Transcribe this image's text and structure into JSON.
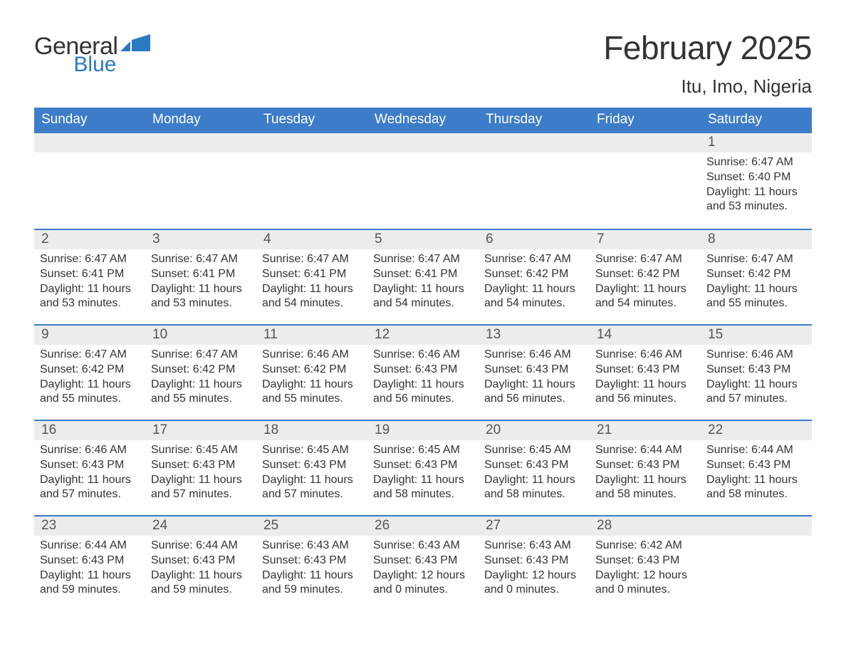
{
  "brand": {
    "general": "General",
    "blue": "Blue"
  },
  "colors": {
    "accent": "#3d7cc9",
    "header_bg": "#3d7cc9",
    "header_text": "#ffffff",
    "daynum_bg": "#ececec",
    "body_text": "#333333",
    "logo_blue": "#2b79c2"
  },
  "title": "February 2025",
  "location": "Itu, Imo, Nigeria",
  "weekdays": [
    "Sunday",
    "Monday",
    "Tuesday",
    "Wednesday",
    "Thursday",
    "Friday",
    "Saturday"
  ],
  "labels": {
    "sunrise": "Sunrise",
    "sunset": "Sunset",
    "daylight": "Daylight"
  },
  "calendar": {
    "type": "table",
    "columns": 7,
    "rows": 5,
    "start_weekday_index": 6,
    "days": [
      {
        "n": 1,
        "sunrise": "6:47 AM",
        "sunset": "6:40 PM",
        "daylight": "11 hours and 53 minutes."
      },
      {
        "n": 2,
        "sunrise": "6:47 AM",
        "sunset": "6:41 PM",
        "daylight": "11 hours and 53 minutes."
      },
      {
        "n": 3,
        "sunrise": "6:47 AM",
        "sunset": "6:41 PM",
        "daylight": "11 hours and 53 minutes."
      },
      {
        "n": 4,
        "sunrise": "6:47 AM",
        "sunset": "6:41 PM",
        "daylight": "11 hours and 54 minutes."
      },
      {
        "n": 5,
        "sunrise": "6:47 AM",
        "sunset": "6:41 PM",
        "daylight": "11 hours and 54 minutes."
      },
      {
        "n": 6,
        "sunrise": "6:47 AM",
        "sunset": "6:42 PM",
        "daylight": "11 hours and 54 minutes."
      },
      {
        "n": 7,
        "sunrise": "6:47 AM",
        "sunset": "6:42 PM",
        "daylight": "11 hours and 54 minutes."
      },
      {
        "n": 8,
        "sunrise": "6:47 AM",
        "sunset": "6:42 PM",
        "daylight": "11 hours and 55 minutes."
      },
      {
        "n": 9,
        "sunrise": "6:47 AM",
        "sunset": "6:42 PM",
        "daylight": "11 hours and 55 minutes."
      },
      {
        "n": 10,
        "sunrise": "6:47 AM",
        "sunset": "6:42 PM",
        "daylight": "11 hours and 55 minutes."
      },
      {
        "n": 11,
        "sunrise": "6:46 AM",
        "sunset": "6:42 PM",
        "daylight": "11 hours and 55 minutes."
      },
      {
        "n": 12,
        "sunrise": "6:46 AM",
        "sunset": "6:43 PM",
        "daylight": "11 hours and 56 minutes."
      },
      {
        "n": 13,
        "sunrise": "6:46 AM",
        "sunset": "6:43 PM",
        "daylight": "11 hours and 56 minutes."
      },
      {
        "n": 14,
        "sunrise": "6:46 AM",
        "sunset": "6:43 PM",
        "daylight": "11 hours and 56 minutes."
      },
      {
        "n": 15,
        "sunrise": "6:46 AM",
        "sunset": "6:43 PM",
        "daylight": "11 hours and 57 minutes."
      },
      {
        "n": 16,
        "sunrise": "6:46 AM",
        "sunset": "6:43 PM",
        "daylight": "11 hours and 57 minutes."
      },
      {
        "n": 17,
        "sunrise": "6:45 AM",
        "sunset": "6:43 PM",
        "daylight": "11 hours and 57 minutes."
      },
      {
        "n": 18,
        "sunrise": "6:45 AM",
        "sunset": "6:43 PM",
        "daylight": "11 hours and 57 minutes."
      },
      {
        "n": 19,
        "sunrise": "6:45 AM",
        "sunset": "6:43 PM",
        "daylight": "11 hours and 58 minutes."
      },
      {
        "n": 20,
        "sunrise": "6:45 AM",
        "sunset": "6:43 PM",
        "daylight": "11 hours and 58 minutes."
      },
      {
        "n": 21,
        "sunrise": "6:44 AM",
        "sunset": "6:43 PM",
        "daylight": "11 hours and 58 minutes."
      },
      {
        "n": 22,
        "sunrise": "6:44 AM",
        "sunset": "6:43 PM",
        "daylight": "11 hours and 58 minutes."
      },
      {
        "n": 23,
        "sunrise": "6:44 AM",
        "sunset": "6:43 PM",
        "daylight": "11 hours and 59 minutes."
      },
      {
        "n": 24,
        "sunrise": "6:44 AM",
        "sunset": "6:43 PM",
        "daylight": "11 hours and 59 minutes."
      },
      {
        "n": 25,
        "sunrise": "6:43 AM",
        "sunset": "6:43 PM",
        "daylight": "11 hours and 59 minutes."
      },
      {
        "n": 26,
        "sunrise": "6:43 AM",
        "sunset": "6:43 PM",
        "daylight": "12 hours and 0 minutes."
      },
      {
        "n": 27,
        "sunrise": "6:43 AM",
        "sunset": "6:43 PM",
        "daylight": "12 hours and 0 minutes."
      },
      {
        "n": 28,
        "sunrise": "6:42 AM",
        "sunset": "6:43 PM",
        "daylight": "12 hours and 0 minutes."
      }
    ]
  }
}
